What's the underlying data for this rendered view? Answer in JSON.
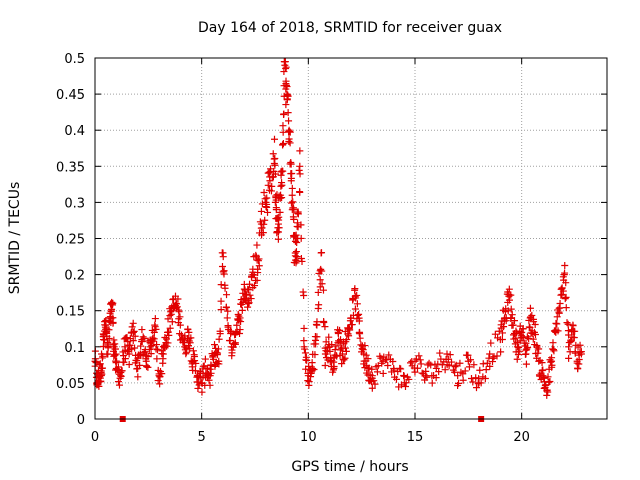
{
  "chart_data": {
    "type": "scatter",
    "title": "Day 164 of 2018, SRMTID for receiver guax",
    "xlabel": "GPS time / hours",
    "ylabel": "SRMTID / TECUs",
    "xlim": [
      0,
      24
    ],
    "ylim": [
      0,
      0.5
    ],
    "xticks": [
      0,
      5,
      10,
      15,
      20
    ],
    "xtick_labels": [
      "0",
      "5",
      "10",
      "15",
      "20"
    ],
    "yticks": [
      0,
      0.05,
      0.1,
      0.15,
      0.2,
      0.25,
      0.3,
      0.35,
      0.4,
      0.45,
      0.5
    ],
    "ytick_labels": [
      "0",
      "0.05",
      "0.1",
      "0.15",
      "0.2",
      "0.25",
      "0.3",
      "0.35",
      "0.4",
      "0.45",
      "0.5"
    ],
    "grid": true,
    "marker": "+",
    "color": "#e00000",
    "series": [
      {
        "name": "SRMTID",
        "x": [
          0.0,
          0.1,
          0.2,
          0.3,
          0.4,
          0.5,
          0.6,
          0.7,
          0.8,
          0.9,
          1.0,
          1.2,
          1.4,
          1.6,
          1.8,
          2.0,
          2.2,
          2.4,
          2.6,
          2.8,
          3.0,
          3.2,
          3.4,
          3.6,
          3.8,
          4.0,
          4.2,
          4.4,
          4.6,
          4.8,
          5.0,
          5.2,
          5.4,
          5.6,
          5.8,
          6.0,
          6.2,
          6.4,
          6.6,
          6.8,
          7.0,
          7.2,
          7.4,
          7.6,
          7.8,
          8.0,
          8.2,
          8.4,
          8.5,
          8.6,
          8.7,
          8.8,
          8.9,
          9.0,
          9.1,
          9.2,
          9.3,
          9.4,
          9.5,
          9.6,
          9.8,
          10.0,
          10.2,
          10.4,
          10.6,
          10.8,
          11.0,
          11.2,
          11.4,
          11.6,
          11.8,
          12.0,
          12.2,
          12.4,
          12.6,
          12.8,
          13.0,
          13.5,
          14.0,
          14.5,
          15.0,
          15.5,
          16.0,
          16.5,
          17.0,
          17.5,
          18.0,
          18.5,
          19.0,
          19.2,
          19.4,
          19.6,
          19.8,
          20.0,
          20.2,
          20.4,
          20.6,
          20.8,
          21.0,
          21.2,
          21.4,
          21.6,
          21.8,
          22.0,
          22.2,
          22.4,
          22.6,
          22.8
        ],
        "y": [
          0.08,
          0.05,
          0.06,
          0.07,
          0.11,
          0.13,
          0.09,
          0.14,
          0.16,
          0.1,
          0.07,
          0.06,
          0.1,
          0.09,
          0.12,
          0.07,
          0.11,
          0.08,
          0.1,
          0.13,
          0.06,
          0.09,
          0.12,
          0.15,
          0.16,
          0.13,
          0.1,
          0.12,
          0.08,
          0.06,
          0.05,
          0.07,
          0.06,
          0.09,
          0.08,
          0.23,
          0.14,
          0.1,
          0.12,
          0.14,
          0.18,
          0.16,
          0.2,
          0.22,
          0.27,
          0.3,
          0.33,
          0.36,
          0.29,
          0.27,
          0.31,
          0.38,
          0.49,
          0.45,
          0.4,
          0.33,
          0.28,
          0.22,
          0.25,
          0.35,
          0.1,
          0.06,
          0.07,
          0.13,
          0.23,
          0.09,
          0.1,
          0.07,
          0.12,
          0.09,
          0.11,
          0.14,
          0.17,
          0.12,
          0.09,
          0.07,
          0.06,
          0.08,
          0.07,
          0.05,
          0.08,
          0.06,
          0.07,
          0.09,
          0.06,
          0.08,
          0.05,
          0.09,
          0.11,
          0.14,
          0.17,
          0.13,
          0.1,
          0.12,
          0.09,
          0.14,
          0.12,
          0.08,
          0.06,
          0.04,
          0.08,
          0.12,
          0.16,
          0.2,
          0.1,
          0.13,
          0.08,
          0.09
        ]
      }
    ],
    "markers_at_zero": [
      1.3,
      18.1
    ]
  }
}
